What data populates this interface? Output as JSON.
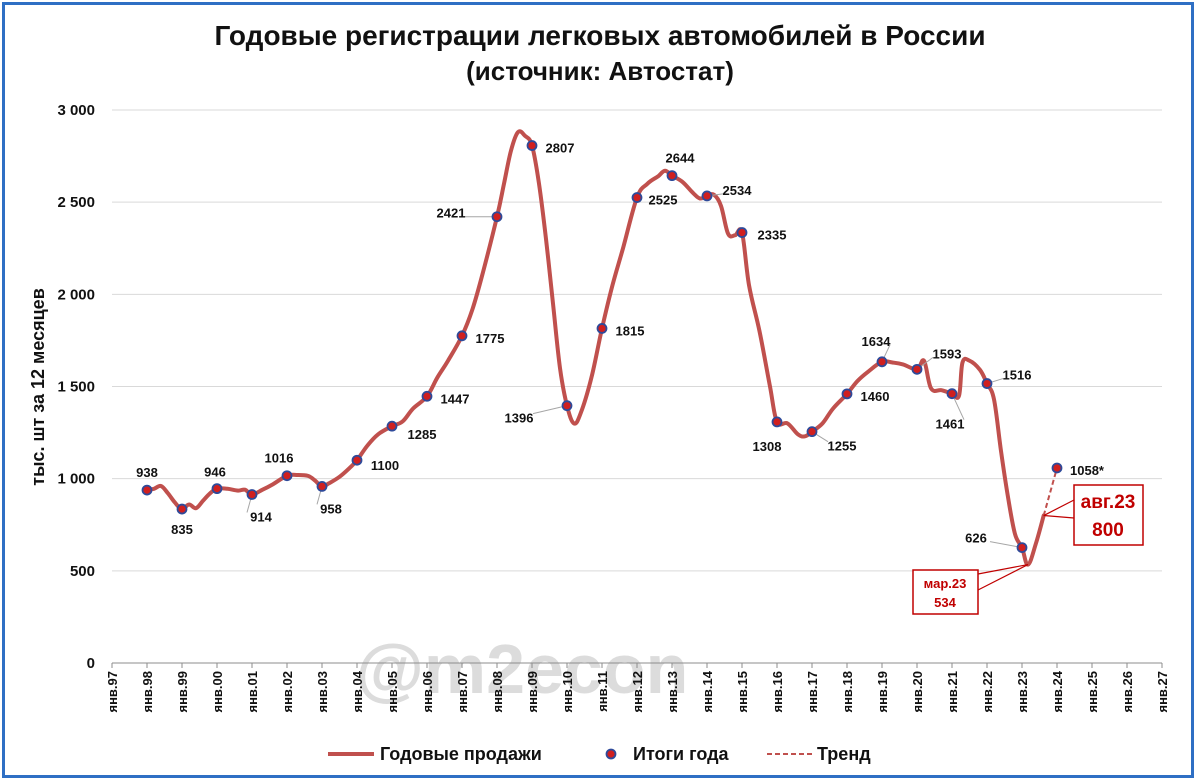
{
  "chart_data": {
    "type": "line",
    "title": "Годовые регистрации легковых автомобилей в России",
    "subtitle": "(источник: Автостат)",
    "ylabel": "тыс. шт за 12 месяцев",
    "xlabel": "",
    "ylim": [
      0,
      3000
    ],
    "yticks": [
      0,
      500,
      1000,
      1500,
      2000,
      2500,
      3000
    ],
    "ytick_labels": [
      "0",
      "500",
      "1 000",
      "1 500",
      "2 000",
      "2 500",
      "3 000"
    ],
    "xtick_labels": [
      "янв.97",
      "янв.98",
      "янв.99",
      "янв.00",
      "янв.01",
      "янв.02",
      "янв.03",
      "янв.04",
      "янв.05",
      "янв.06",
      "янв.07",
      "янв.08",
      "янв.09",
      "янв.10",
      "янв.11",
      "янв.12",
      "янв.13",
      "янв.14",
      "янв.15",
      "янв.16",
      "янв.17",
      "янв.18",
      "янв.19",
      "янв.20",
      "янв.21",
      "янв.22",
      "янв.23",
      "янв.24",
      "янв.25",
      "янв.26",
      "янв.27"
    ],
    "grid": "horizontal",
    "legend_position": "bottom",
    "series": [
      {
        "name": "Годовые продажи",
        "color": "#c0504d",
        "style": "solid",
        "points": [
          [
            1998.0,
            938
          ],
          [
            1998.2,
            945
          ],
          [
            1998.4,
            960
          ],
          [
            1998.6,
            920
          ],
          [
            1998.8,
            870
          ],
          [
            1999.0,
            835
          ],
          [
            1999.2,
            860
          ],
          [
            1999.4,
            840
          ],
          [
            1999.6,
            880
          ],
          [
            1999.8,
            920
          ],
          [
            2000.0,
            946
          ],
          [
            2000.3,
            945
          ],
          [
            2000.6,
            935
          ],
          [
            2000.8,
            940
          ],
          [
            2001.0,
            914
          ],
          [
            2001.3,
            940
          ],
          [
            2001.6,
            970
          ],
          [
            2002.0,
            1016
          ],
          [
            2002.3,
            1020
          ],
          [
            2002.6,
            1015
          ],
          [
            2002.8,
            990
          ],
          [
            2003.0,
            958
          ],
          [
            2003.2,
            975
          ],
          [
            2003.5,
            1010
          ],
          [
            2003.8,
            1060
          ],
          [
            2004.0,
            1100
          ],
          [
            2004.3,
            1180
          ],
          [
            2004.6,
            1240
          ],
          [
            2005.0,
            1285
          ],
          [
            2005.3,
            1310
          ],
          [
            2005.6,
            1380
          ],
          [
            2006.0,
            1447
          ],
          [
            2006.3,
            1550
          ],
          [
            2006.6,
            1640
          ],
          [
            2007.0,
            1775
          ],
          [
            2007.3,
            1920
          ],
          [
            2007.6,
            2120
          ],
          [
            2008.0,
            2421
          ],
          [
            2008.2,
            2600
          ],
          [
            2008.4,
            2780
          ],
          [
            2008.6,
            2880
          ],
          [
            2008.8,
            2860
          ],
          [
            2009.0,
            2807
          ],
          [
            2009.2,
            2600
          ],
          [
            2009.4,
            2300
          ],
          [
            2009.6,
            1950
          ],
          [
            2009.8,
            1600
          ],
          [
            2010.0,
            1396
          ],
          [
            2010.2,
            1300
          ],
          [
            2010.4,
            1360
          ],
          [
            2010.7,
            1550
          ],
          [
            2011.0,
            1815
          ],
          [
            2011.3,
            2050
          ],
          [
            2011.6,
            2250
          ],
          [
            2012.0,
            2525
          ],
          [
            2012.3,
            2600
          ],
          [
            2012.6,
            2640
          ],
          [
            2012.8,
            2670
          ],
          [
            2013.0,
            2644
          ],
          [
            2013.3,
            2610
          ],
          [
            2013.6,
            2550
          ],
          [
            2013.8,
            2520
          ],
          [
            2014.0,
            2534
          ],
          [
            2014.2,
            2540
          ],
          [
            2014.4,
            2480
          ],
          [
            2014.6,
            2330
          ],
          [
            2014.8,
            2320
          ],
          [
            2015.0,
            2335
          ],
          [
            2015.2,
            2050
          ],
          [
            2015.5,
            1800
          ],
          [
            2015.8,
            1500
          ],
          [
            2016.0,
            1308
          ],
          [
            2016.3,
            1300
          ],
          [
            2016.6,
            1240
          ],
          [
            2016.8,
            1230
          ],
          [
            2017.0,
            1255
          ],
          [
            2017.3,
            1300
          ],
          [
            2017.6,
            1380
          ],
          [
            2018.0,
            1460
          ],
          [
            2018.3,
            1530
          ],
          [
            2018.6,
            1580
          ],
          [
            2019.0,
            1634
          ],
          [
            2019.3,
            1630
          ],
          [
            2019.6,
            1620
          ],
          [
            2020.0,
            1593
          ],
          [
            2020.2,
            1640
          ],
          [
            2020.4,
            1490
          ],
          [
            2020.7,
            1480
          ],
          [
            2021.0,
            1461
          ],
          [
            2021.2,
            1450
          ],
          [
            2021.3,
            1630
          ],
          [
            2021.5,
            1640
          ],
          [
            2021.8,
            1590
          ],
          [
            2022.0,
            1516
          ],
          [
            2022.2,
            1430
          ],
          [
            2022.4,
            1150
          ],
          [
            2022.6,
            900
          ],
          [
            2022.8,
            700
          ],
          [
            2023.0,
            626
          ],
          [
            2023.17,
            534
          ],
          [
            2023.4,
            650
          ],
          [
            2023.62,
            800
          ]
        ]
      },
      {
        "name": "Итоги года",
        "color": "#2e4a9a",
        "style": "points",
        "points": [
          [
            1998,
            938
          ],
          [
            1999,
            835
          ],
          [
            2000,
            946
          ],
          [
            2001,
            914
          ],
          [
            2002,
            1016
          ],
          [
            2003,
            958
          ],
          [
            2004,
            1100
          ],
          [
            2005,
            1285
          ],
          [
            2006,
            1447
          ],
          [
            2007,
            1775
          ],
          [
            2008,
            2421
          ],
          [
            2009,
            2807
          ],
          [
            2010,
            1396
          ],
          [
            2011,
            1815
          ],
          [
            2012,
            2525
          ],
          [
            2013,
            2644
          ],
          [
            2014,
            2534
          ],
          [
            2015,
            2335
          ],
          [
            2016,
            1308
          ],
          [
            2017,
            1255
          ],
          [
            2018,
            1460
          ],
          [
            2019,
            1634
          ],
          [
            2020,
            1593
          ],
          [
            2021,
            1461
          ],
          [
            2022,
            1516
          ],
          [
            2023,
            626
          ],
          [
            2024,
            1058
          ]
        ],
        "labels": [
          "938",
          "835",
          "946",
          "914",
          "1016",
          "958",
          "1100",
          "1285",
          "1447",
          "1775",
          "2421",
          "2807",
          "1396",
          "1815",
          "2525",
          "2644",
          "2534",
          "2335",
          "1308",
          "1255",
          "1460",
          "1634",
          "1593",
          "1461",
          "1516",
          "626",
          "1058*"
        ]
      },
      {
        "name": "Тренд",
        "color": "#c0504d",
        "style": "dashed",
        "points": [
          [
            2023.62,
            800
          ],
          [
            2024,
            1058
          ]
        ]
      }
    ],
    "annotations": [
      {
        "line1": "мар.23",
        "line2": "534",
        "x": 2023.17,
        "y": 534
      },
      {
        "line1": "авг.23",
        "line2": "800",
        "x": 2023.62,
        "y": 800
      }
    ],
    "watermark": "@m2econ"
  }
}
